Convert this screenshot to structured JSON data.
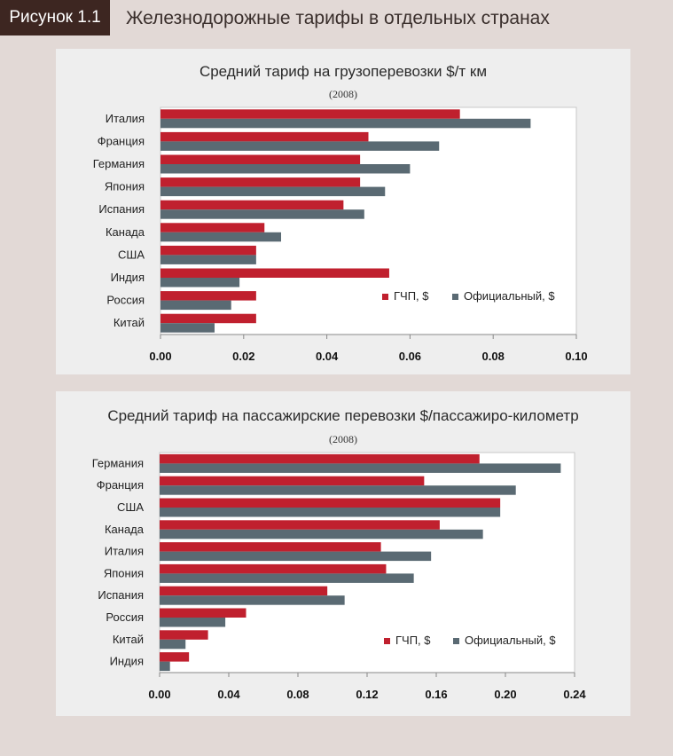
{
  "figure": {
    "label": "Рисунок 1.1",
    "title": "Железнодорожные тарифы в отдельных странах"
  },
  "colors": {
    "gdp": "#c0202e",
    "official": "#5a6a73",
    "badge_bg": "#3d2621",
    "page_bg": "#e2d9d6",
    "panel_bg": "#eeeeee"
  },
  "chart_data": [
    {
      "type": "bar",
      "orientation": "horizontal",
      "title": "Средний тариф на грузоперевозки $/т км",
      "subtitle": "(2008)",
      "categories": [
        "Италия",
        "Франция",
        "Германия",
        "Япония",
        "Испания",
        "Канада",
        "США",
        "Индия",
        "Россия",
        "Китай"
      ],
      "series": [
        {
          "name": "ГЧП, $",
          "values": [
            0.072,
            0.05,
            0.048,
            0.048,
            0.044,
            0.025,
            0.023,
            0.055,
            0.023,
            0.023
          ]
        },
        {
          "name": "Официальный, $",
          "values": [
            0.089,
            0.067,
            0.06,
            0.054,
            0.049,
            0.029,
            0.023,
            0.019,
            0.017,
            0.013
          ]
        }
      ],
      "xlim": [
        0,
        0.1
      ],
      "ticks": [
        0.0,
        0.02,
        0.04,
        0.06,
        0.08,
        0.1
      ],
      "tick_labels": [
        "0.00",
        "0.02",
        "0.04",
        "0.06",
        "0.08",
        "0.10"
      ],
      "legend": "bottom-right"
    },
    {
      "type": "bar",
      "orientation": "horizontal",
      "title": "Средний тариф на пассажирские перевозки $/пассажиро-километр",
      "subtitle": "(2008)",
      "categories": [
        "Германия",
        "Франция",
        "США",
        "Канада",
        "Италия",
        "Япония",
        "Испания",
        "Россия",
        "Китай",
        "Индия"
      ],
      "series": [
        {
          "name": "ГЧП, $",
          "values": [
            0.185,
            0.153,
            0.197,
            0.162,
            0.128,
            0.131,
            0.097,
            0.05,
            0.028,
            0.017
          ]
        },
        {
          "name": "Официальный, $",
          "values": [
            0.232,
            0.206,
            0.197,
            0.187,
            0.157,
            0.147,
            0.107,
            0.038,
            0.015,
            0.006
          ]
        }
      ],
      "xlim": [
        0,
        0.24
      ],
      "ticks": [
        0.0,
        0.04,
        0.08,
        0.12,
        0.16,
        0.2,
        0.24
      ],
      "tick_labels": [
        "0.00",
        "0.04",
        "0.08",
        "0.12",
        "0.16",
        "0.20",
        "0.24"
      ],
      "legend": "bottom-right"
    }
  ]
}
